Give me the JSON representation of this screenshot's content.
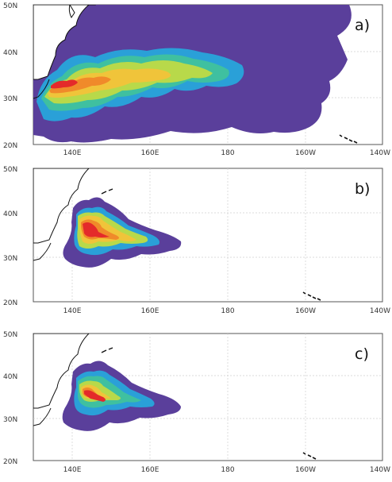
{
  "panels": [
    {
      "label": "a)"
    },
    {
      "label": "b)"
    },
    {
      "label": "c)"
    }
  ],
  "axes": {
    "x_ticks": [
      "140E",
      "160E",
      "180",
      "160W",
      "140W"
    ],
    "y_ticks": [
      "50N",
      "40N",
      "30N",
      "20N"
    ],
    "lon_range": [
      130,
      220
    ],
    "lat_range": [
      20,
      50
    ]
  },
  "colors": {
    "background_field": "#5a3f9b",
    "levels": [
      "#5a3f9b",
      "#2aa0d8",
      "#3fc0a0",
      "#b8d94a",
      "#f0c43a",
      "#f08a2a",
      "#e42a2a"
    ],
    "land_outline": "#111111",
    "grid": "#cfcfcf"
  }
}
